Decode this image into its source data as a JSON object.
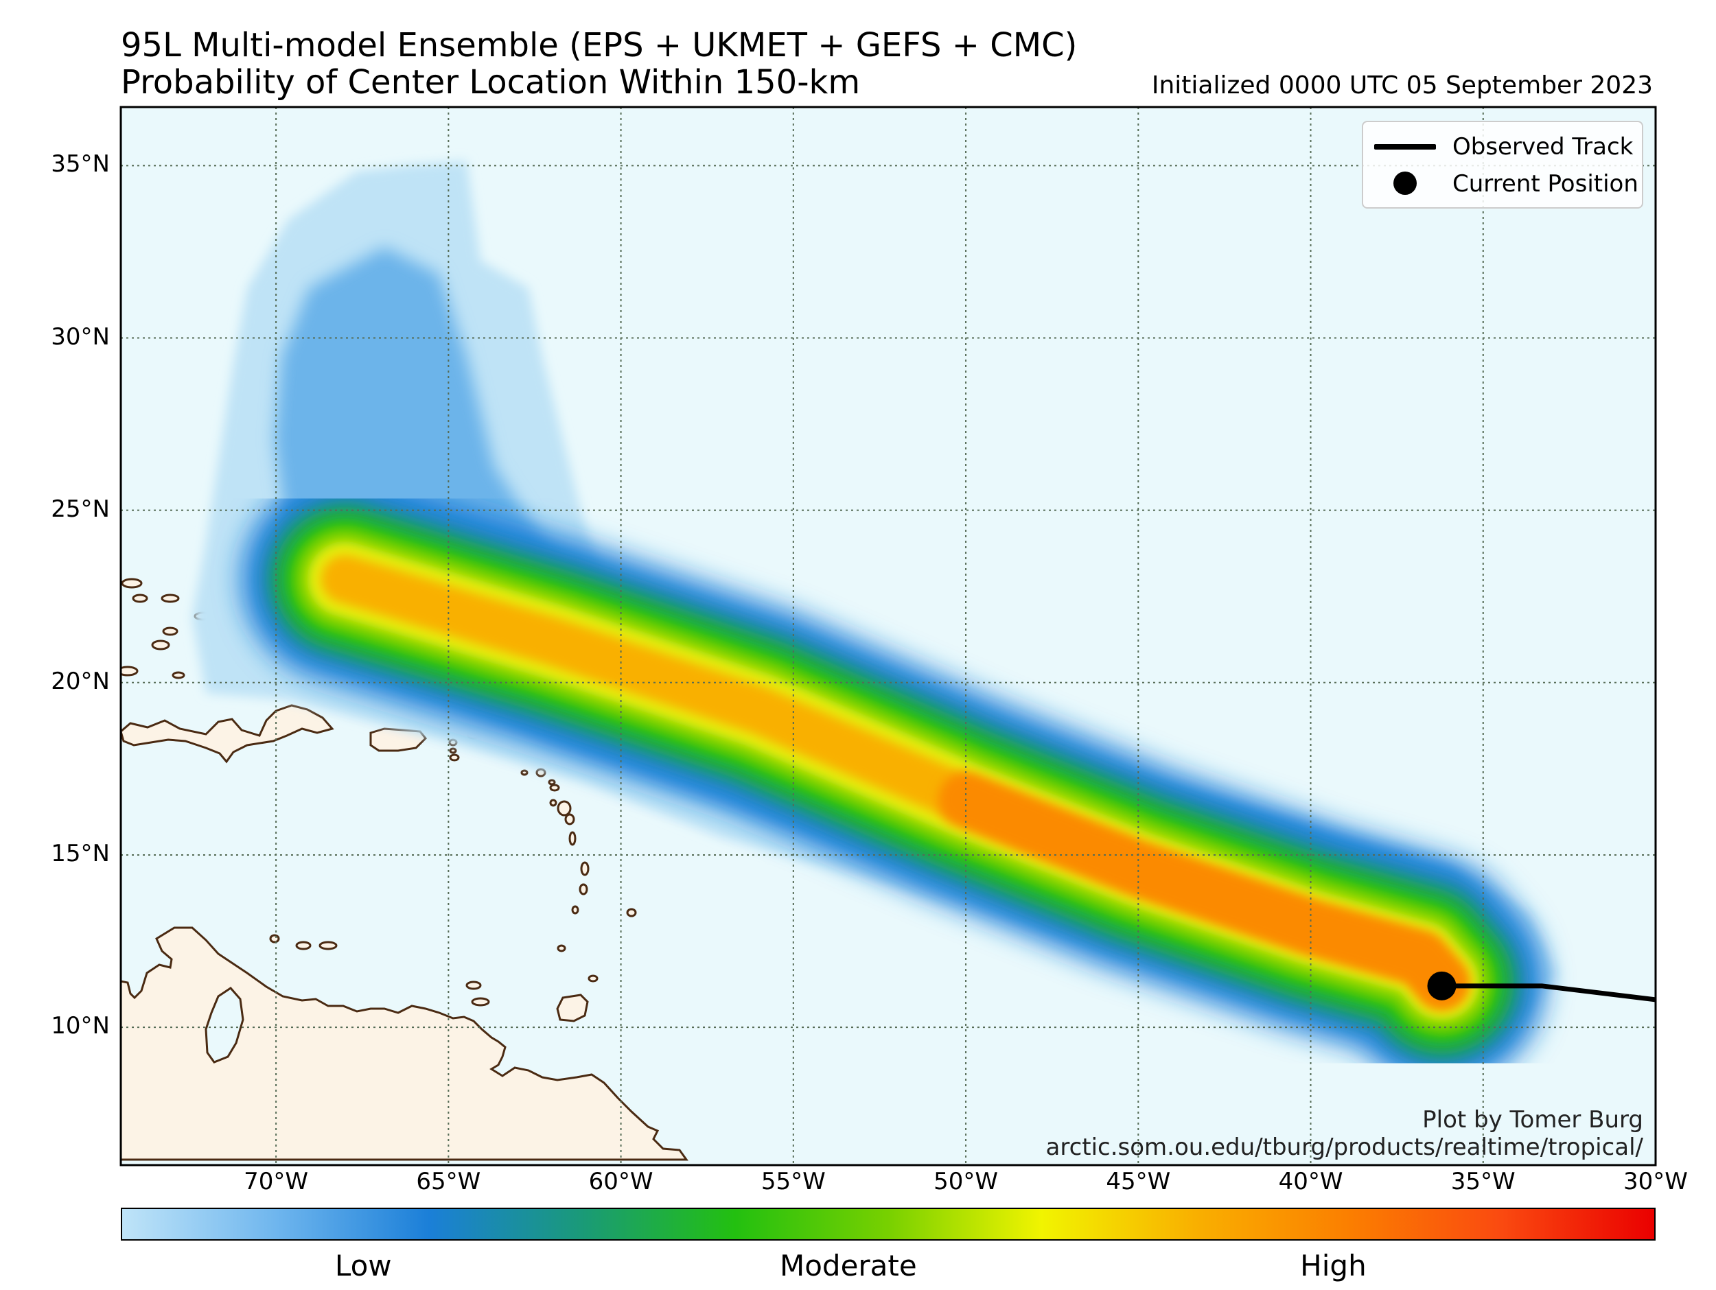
{
  "title": {
    "line1": "95L Multi-model Ensemble (EPS + UKMET + GEFS + CMC)",
    "line2": "Probability of Center Location Within 150-km",
    "initialized": "Initialized 0000 UTC 05 September 2023"
  },
  "map": {
    "ocean_color": "#eaf9fc",
    "land_color": "#fcf3e6",
    "coast_color": "#4a2a12",
    "gridline_color": "#556b55",
    "extent": {
      "lon_min": -74.5,
      "lon_max": -30,
      "lat_min": 6,
      "lat_max": 36.7
    },
    "lat_ticks": [
      {
        "value": 35,
        "label": "35°N"
      },
      {
        "value": 30,
        "label": "30°N"
      },
      {
        "value": 25,
        "label": "25°N"
      },
      {
        "value": 20,
        "label": "20°N"
      },
      {
        "value": 15,
        "label": "15°N"
      },
      {
        "value": 10,
        "label": "10°N"
      }
    ],
    "lon_ticks": [
      {
        "value": -70,
        "label": "70°W"
      },
      {
        "value": -65,
        "label": "65°W"
      },
      {
        "value": -60,
        "label": "60°W"
      },
      {
        "value": -55,
        "label": "55°W"
      },
      {
        "value": -50,
        "label": "50°W"
      },
      {
        "value": -45,
        "label": "45°W"
      },
      {
        "value": -40,
        "label": "40°W"
      },
      {
        "value": -35,
        "label": "35°W"
      },
      {
        "value": -30,
        "label": "30°W"
      }
    ],
    "probability_axis": [
      [
        -68.0,
        23.0
      ],
      [
        -62.0,
        21.2
      ],
      [
        -56.0,
        19.2
      ],
      [
        -50.0,
        16.6
      ],
      [
        -45.0,
        14.6
      ],
      [
        -40.0,
        12.9
      ],
      [
        -36.8,
        12.0
      ],
      [
        -36.2,
        11.3
      ]
    ],
    "observed_track": [
      [
        -36.2,
        11.2
      ],
      [
        -33.3,
        11.2
      ],
      [
        -30.0,
        10.8
      ]
    ],
    "current_position": {
      "lon": -36.2,
      "lat": 11.2
    }
  },
  "legend": {
    "observed_track": "Observed Track",
    "current_position": "Current Position"
  },
  "credits": {
    "author": "Plot by Tomer Burg",
    "url": "arctic.som.ou.edu/tburg/products/realtime/tropical/"
  },
  "colorbar": {
    "colors": [
      "#bfe4f8",
      "#6fb6ee",
      "#1b7fd8",
      "#1a9a78",
      "#23c010",
      "#78d000",
      "#f1f400",
      "#f9b000",
      "#fb7f00",
      "#fa4a10",
      "#ea0000"
    ],
    "labels": [
      {
        "text": "Low",
        "pos": 0.158
      },
      {
        "text": "Moderate",
        "pos": 0.474
      },
      {
        "text": "High",
        "pos": 0.79
      }
    ]
  }
}
